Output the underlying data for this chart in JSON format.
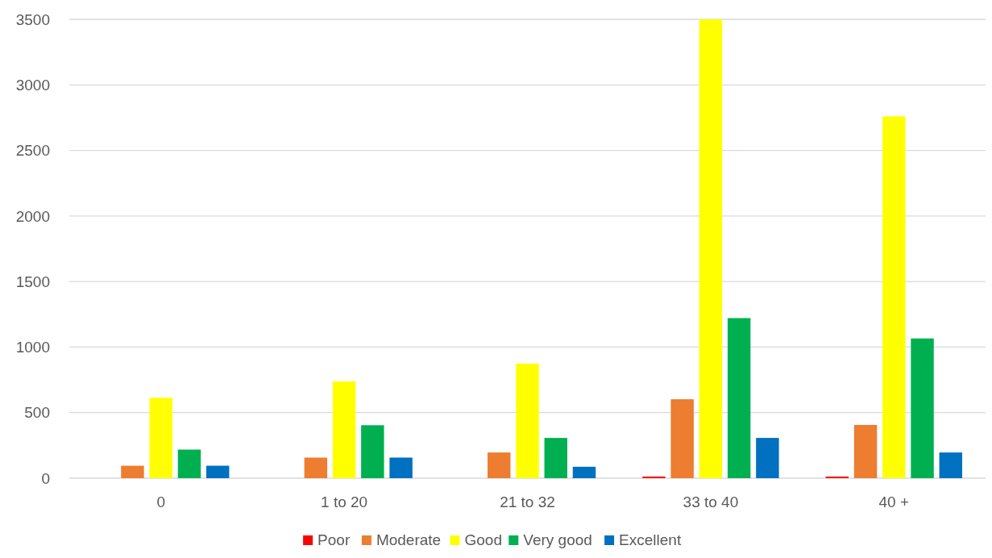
{
  "chart_data": {
    "type": "bar",
    "categories": [
      "0",
      "1 to 20",
      "21 to 32",
      "33 to 40",
      "40 +"
    ],
    "series": [
      {
        "name": "Poor",
        "color": "#ff0000",
        "values": [
          0,
          0,
          0,
          12,
          12
        ]
      },
      {
        "name": "Moderate",
        "color": "#ed7d31",
        "values": [
          95,
          157,
          196,
          602,
          406
        ]
      },
      {
        "name": "Good",
        "color": "#ffff00",
        "values": [
          613,
          738,
          874,
          3500,
          2760
        ]
      },
      {
        "name": "Very good",
        "color": "#00b050",
        "values": [
          218,
          404,
          307,
          1221,
          1066
        ]
      },
      {
        "name": "Excellent",
        "color": "#0070c0",
        "values": [
          95,
          157,
          87,
          307,
          196
        ]
      }
    ],
    "ylim": [
      0,
      3500
    ],
    "yticks": [
      0,
      500,
      1000,
      1500,
      2000,
      2500,
      3000,
      3500
    ],
    "grid": "y",
    "legend": "bottom"
  }
}
